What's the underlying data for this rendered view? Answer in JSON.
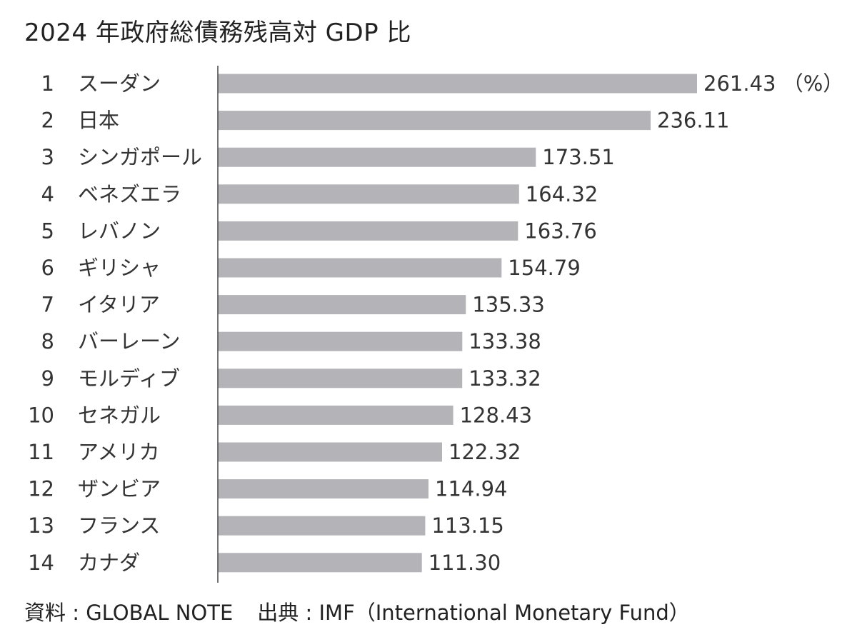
{
  "chart_data": {
    "type": "bar",
    "orientation": "horizontal",
    "title": "2024 年政府総債務残高対 GDP 比",
    "unit_label": "（%）",
    "ranks": [
      "1",
      "2",
      "3",
      "4",
      "5",
      "6",
      "7",
      "8",
      "9",
      "10",
      "11",
      "12",
      "13",
      "14"
    ],
    "categories": [
      "スーダン",
      "日本",
      "シンガポール",
      "ベネズエラ",
      "レバノン",
      "ギリシャ",
      "イタリア",
      "バーレーン",
      "モルディブ",
      "セネガル",
      "アメリカ",
      "ザンビア",
      "フランス",
      "カナダ"
    ],
    "values": [
      261.43,
      236.11,
      173.51,
      164.32,
      163.76,
      154.79,
      135.33,
      133.38,
      133.32,
      128.43,
      122.32,
      114.94,
      113.15,
      111.3
    ],
    "value_labels": [
      "261.43",
      "236.11",
      "173.51",
      "164.32",
      "163.76",
      "154.79",
      "135.33",
      "133.38",
      "133.32",
      "128.43",
      "122.32",
      "114.94",
      "113.15",
      "111.30"
    ],
    "xlim": [
      0,
      261.43
    ],
    "grid": false,
    "bar_color": "#b4b4b8",
    "axis_color": "#444444"
  },
  "footer": {
    "source": "資料 : GLOBAL NOTE",
    "origin": "出典 : IMF（International Monetary Fund）"
  }
}
